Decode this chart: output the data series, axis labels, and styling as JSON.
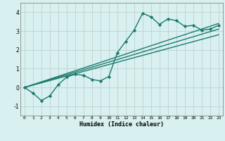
{
  "title": "",
  "xlabel": "Humidex (Indice chaleur)",
  "bg_color": "#d8f0f0",
  "grid_color": "#c0d0d0",
  "line_color": "#1a7a6e",
  "xlim": [
    -0.5,
    23.5
  ],
  "ylim": [
    -1.5,
    4.5
  ],
  "xticks": [
    0,
    1,
    2,
    3,
    4,
    5,
    6,
    7,
    8,
    9,
    10,
    11,
    12,
    13,
    14,
    15,
    16,
    17,
    18,
    19,
    20,
    21,
    22,
    23
  ],
  "yticks": [
    -1,
    0,
    1,
    2,
    3,
    4
  ],
  "lines": [
    {
      "x": [
        0,
        1,
        2,
        3,
        4,
        5,
        6,
        7,
        8,
        9,
        10,
        11,
        12,
        13,
        14,
        15,
        16,
        17,
        18,
        19,
        20,
        21,
        22,
        23
      ],
      "y": [
        0.0,
        -0.3,
        -0.7,
        -0.45,
        0.15,
        0.55,
        0.7,
        0.65,
        0.42,
        0.35,
        0.58,
        1.85,
        2.45,
        3.05,
        3.95,
        3.75,
        3.35,
        3.65,
        3.55,
        3.25,
        3.3,
        3.05,
        3.1,
        3.3
      ],
      "marker": true,
      "linewidth": 1.0
    },
    {
      "x": [
        0,
        23
      ],
      "y": [
        0.0,
        3.4
      ],
      "marker": false,
      "linewidth": 1.0
    },
    {
      "x": [
        0,
        23
      ],
      "y": [
        0.0,
        3.1
      ],
      "marker": false,
      "linewidth": 1.0
    },
    {
      "x": [
        0,
        23
      ],
      "y": [
        0.0,
        2.8
      ],
      "marker": false,
      "linewidth": 1.0
    }
  ]
}
